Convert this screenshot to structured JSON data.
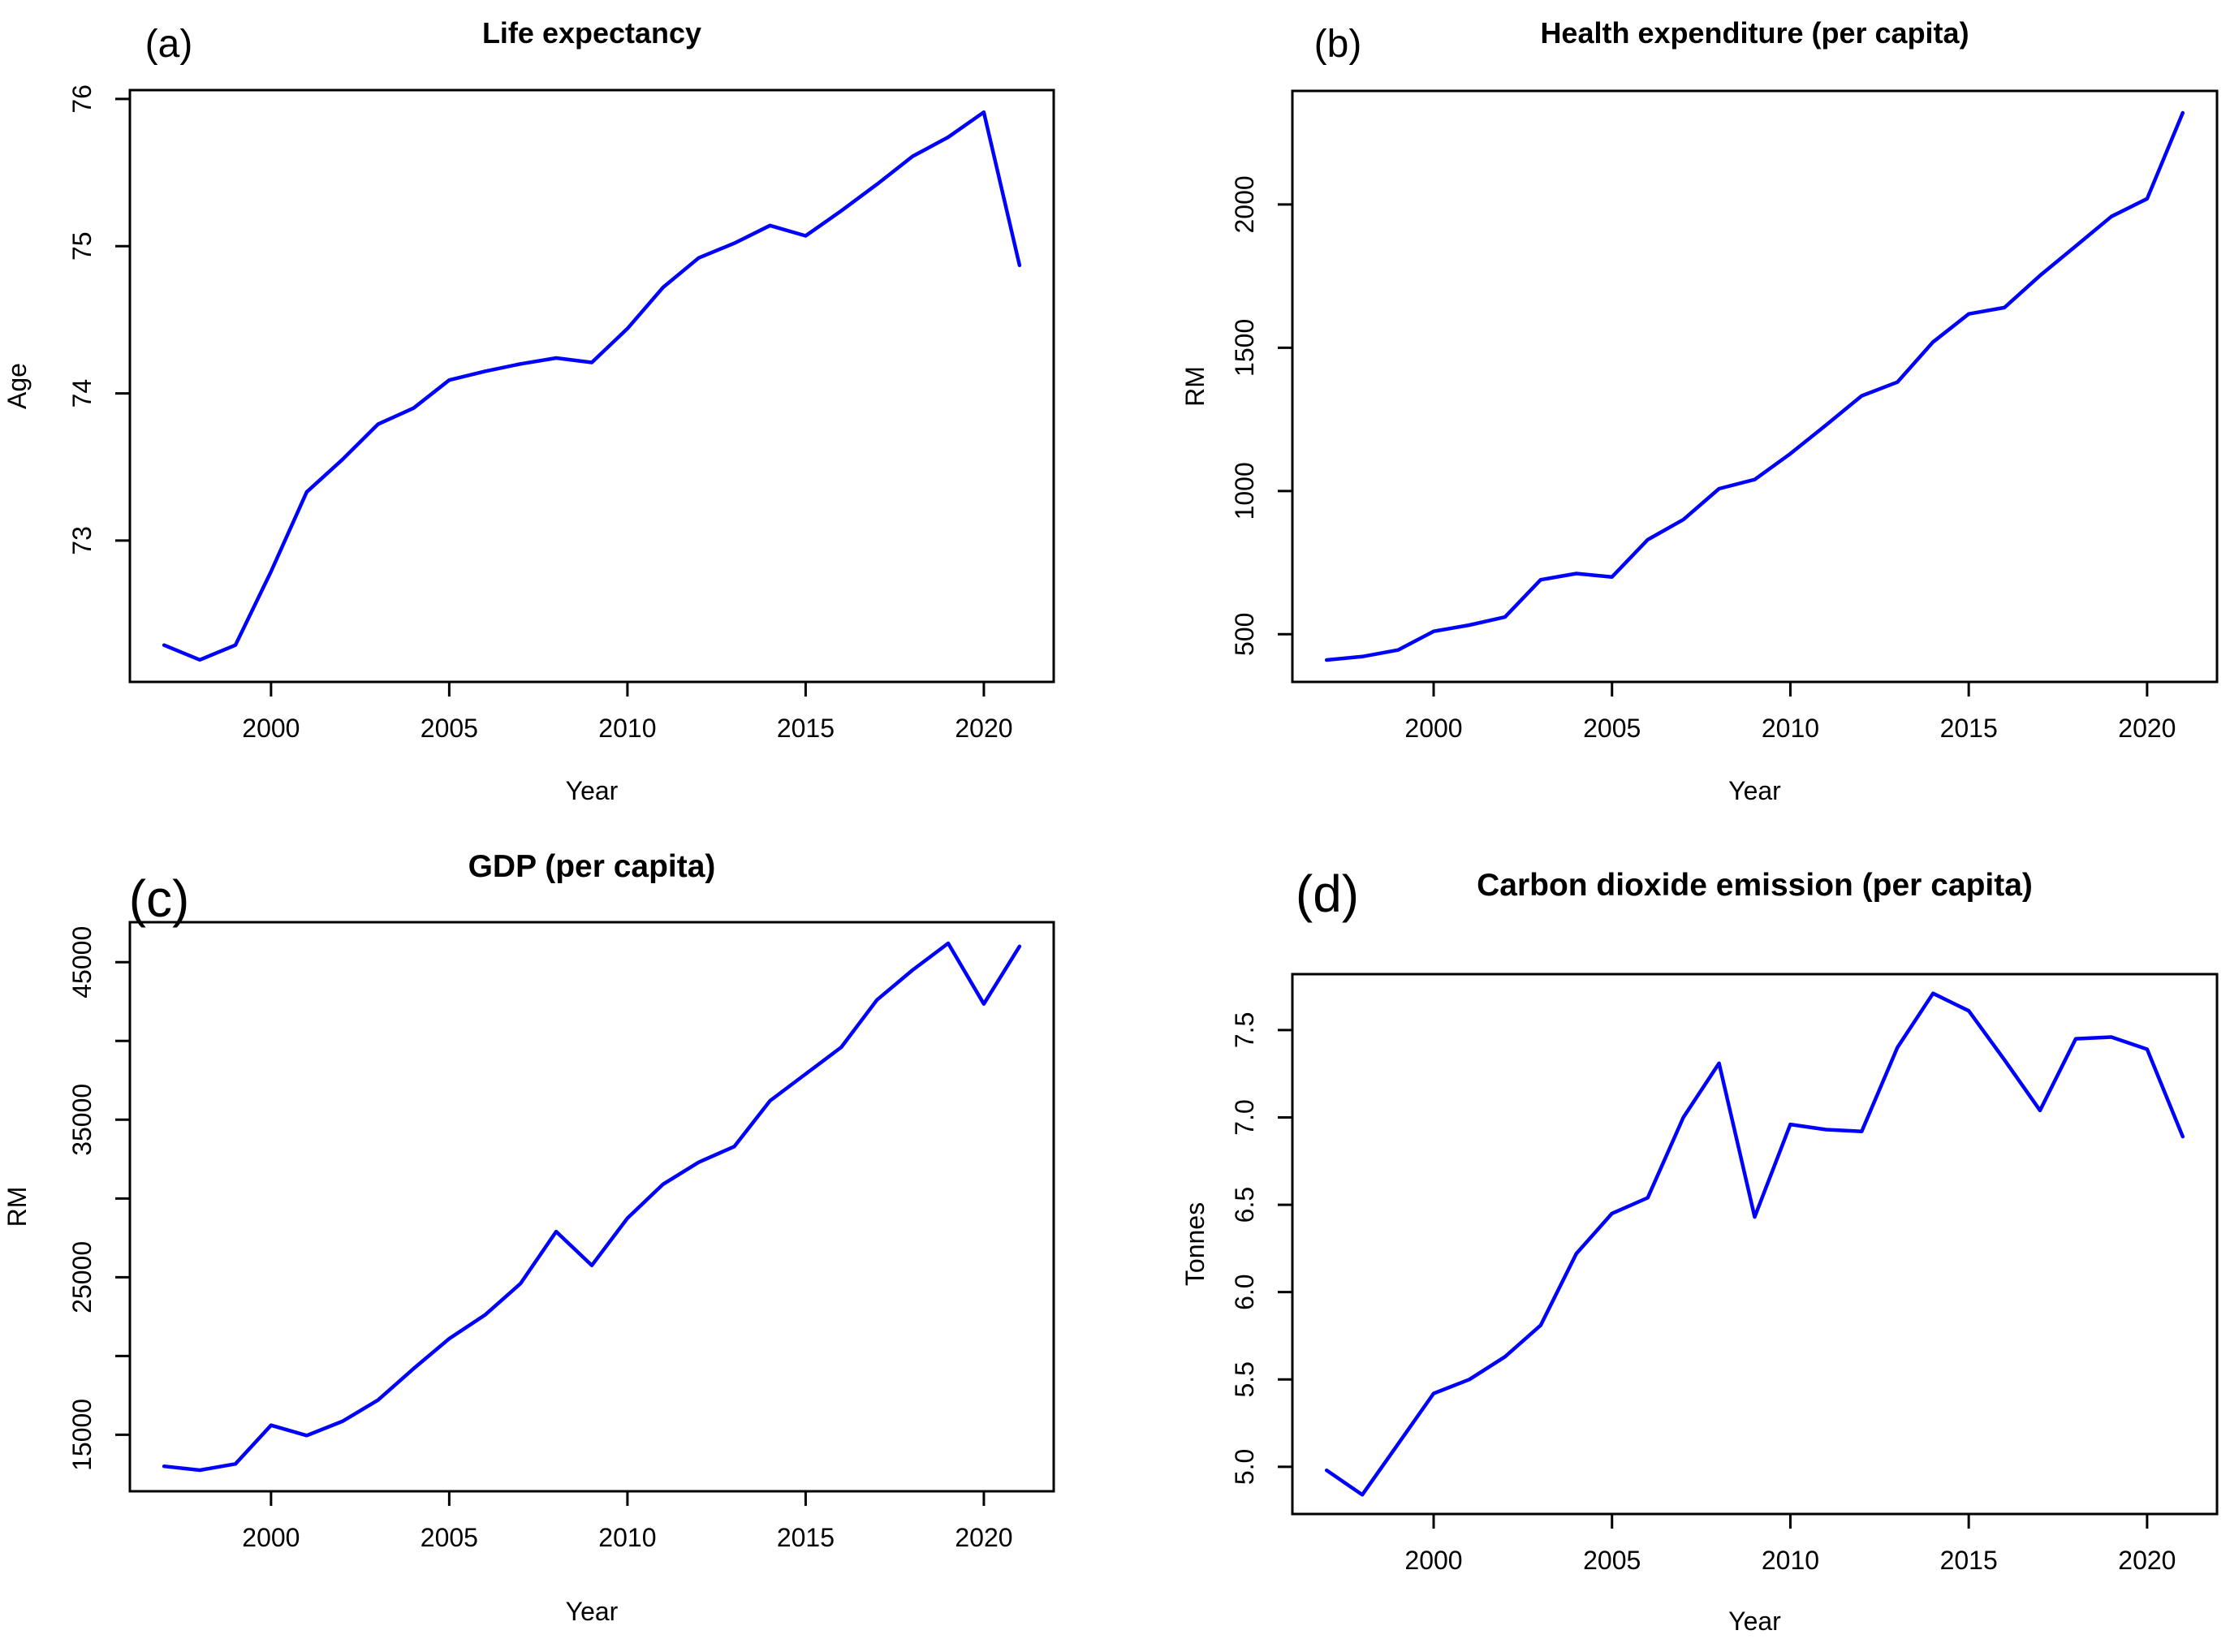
{
  "figure": {
    "background": "#ffffff",
    "axis_color": "#000000",
    "line_color": "#0000ff",
    "years": [
      1997,
      1998,
      1999,
      2000,
      2001,
      2002,
      2003,
      2004,
      2005,
      2006,
      2007,
      2008,
      2009,
      2010,
      2011,
      2012,
      2013,
      2014,
      2015,
      2016,
      2017,
      2018,
      2019,
      2020,
      2021
    ]
  },
  "chart_data": [
    {
      "type": "line",
      "panel_label": "(a)",
      "title": "Life expectancy",
      "xlabel": "Year",
      "ylabel": "Age",
      "legend": null,
      "grid": false,
      "line_color": "#0000ff",
      "xlim": [
        1996.04,
        2021.96
      ],
      "ylim": [
        72.04,
        76.06
      ],
      "xticks": [
        {
          "v": 2000,
          "label": "2000"
        },
        {
          "v": 2005,
          "label": "2005"
        },
        {
          "v": 2010,
          "label": "2010"
        },
        {
          "v": 2015,
          "label": "2015"
        },
        {
          "v": 2020,
          "label": "2020"
        }
      ],
      "yticks": [
        {
          "v": 73,
          "label": "73"
        },
        {
          "v": 74,
          "label": "74"
        },
        {
          "v": 75,
          "label": "75"
        },
        {
          "v": 76,
          "label": "76"
        }
      ],
      "x": [
        1997,
        1998,
        1999,
        2000,
        2001,
        2002,
        2003,
        2004,
        2005,
        2006,
        2007,
        2008,
        2009,
        2010,
        2011,
        2012,
        2013,
        2014,
        2015,
        2016,
        2017,
        2018,
        2019,
        2020,
        2021
      ],
      "values": [
        72.29,
        72.19,
        72.29,
        72.79,
        73.33,
        73.55,
        73.79,
        73.9,
        74.09,
        74.15,
        74.2,
        74.24,
        74.21,
        74.44,
        74.72,
        74.92,
        75.02,
        75.14,
        75.07,
        75.24,
        75.42,
        75.61,
        75.74,
        75.91,
        74.87
      ]
    },
    {
      "type": "line",
      "panel_label": "(b)",
      "title": "Health expenditure (per capita)",
      "xlabel": "Year",
      "ylabel": "RM",
      "legend": null,
      "grid": false,
      "line_color": "#0000ff",
      "xlim": [
        1996.04,
        2021.96
      ],
      "ylim": [
        333.6,
        2396.4
      ],
      "xticks": [
        {
          "v": 2000,
          "label": "2000"
        },
        {
          "v": 2005,
          "label": "2005"
        },
        {
          "v": 2010,
          "label": "2010"
        },
        {
          "v": 2015,
          "label": "2015"
        },
        {
          "v": 2020,
          "label": "2020"
        }
      ],
      "yticks": [
        {
          "v": 500,
          "label": "500"
        },
        {
          "v": 1000,
          "label": "1000"
        },
        {
          "v": 1500,
          "label": "1500"
        },
        {
          "v": 2000,
          "label": "2000"
        }
      ],
      "x": [
        1997,
        1998,
        1999,
        2000,
        2001,
        2002,
        2003,
        2004,
        2005,
        2006,
        2007,
        2008,
        2009,
        2010,
        2011,
        2012,
        2013,
        2014,
        2015,
        2016,
        2017,
        2018,
        2019,
        2020,
        2021
      ],
      "values": [
        410,
        422,
        445,
        510,
        532,
        560,
        690,
        712,
        700,
        830,
        900,
        1008,
        1040,
        1130,
        1230,
        1332,
        1380,
        1520,
        1618,
        1640,
        1752,
        1855,
        1958,
        2020,
        2320
      ]
    },
    {
      "type": "line",
      "panel_label": "(c)",
      "title": "GDP (per capita)",
      "xlabel": "Year",
      "ylabel": "RM",
      "legend": null,
      "grid": false,
      "line_color": "#0000ff",
      "xlim": [
        1996.04,
        2021.96
      ],
      "ylim": [
        11412,
        47538
      ],
      "xticks": [
        {
          "v": 2000,
          "label": "2000"
        },
        {
          "v": 2005,
          "label": "2005"
        },
        {
          "v": 2010,
          "label": "2010"
        },
        {
          "v": 2015,
          "label": "2015"
        },
        {
          "v": 2020,
          "label": "2020"
        }
      ],
      "yticks": [
        {
          "v": 15000,
          "label": "15000"
        },
        {
          "v": 20000,
          "label": ""
        },
        {
          "v": 25000,
          "label": "25000"
        },
        {
          "v": 30000,
          "label": ""
        },
        {
          "v": 35000,
          "label": "35000"
        },
        {
          "v": 40000,
          "label": ""
        },
        {
          "v": 45000,
          "label": "45000"
        }
      ],
      "x": [
        1997,
        1998,
        1999,
        2000,
        2001,
        2002,
        2003,
        2004,
        2005,
        2006,
        2007,
        2008,
        2009,
        2010,
        2011,
        2012,
        2013,
        2014,
        2015,
        2016,
        2017,
        2018,
        2019,
        2020,
        2021
      ],
      "values": [
        13000,
        12750,
        13150,
        15600,
        14950,
        15850,
        17200,
        19200,
        21100,
        22600,
        24600,
        27900,
        25750,
        28750,
        30900,
        32300,
        33300,
        36200,
        37900,
        39600,
        42600,
        44500,
        46200,
        42350,
        46000
      ]
    },
    {
      "type": "line",
      "panel_label": "(d)",
      "title": "Carbon dioxide emission (per capita)",
      "xlabel": "Year",
      "ylabel": "Tonnes",
      "legend": null,
      "grid": false,
      "line_color": "#0000ff",
      "xlim": [
        1996.04,
        2021.96
      ],
      "ylim": [
        4.73,
        7.82
      ],
      "xticks": [
        {
          "v": 2000,
          "label": "2000"
        },
        {
          "v": 2005,
          "label": "2005"
        },
        {
          "v": 2010,
          "label": "2010"
        },
        {
          "v": 2015,
          "label": "2015"
        },
        {
          "v": 2020,
          "label": "2020"
        }
      ],
      "yticks": [
        {
          "v": 5.0,
          "label": "5.0"
        },
        {
          "v": 5.5,
          "label": "5.5"
        },
        {
          "v": 6.0,
          "label": "6.0"
        },
        {
          "v": 6.5,
          "label": "6.5"
        },
        {
          "v": 7.0,
          "label": "7.0"
        },
        {
          "v": 7.5,
          "label": "7.5"
        }
      ],
      "x": [
        1997,
        1998,
        1999,
        2000,
        2001,
        2002,
        2003,
        2004,
        2005,
        2006,
        2007,
        2008,
        2009,
        2010,
        2011,
        2012,
        2013,
        2014,
        2015,
        2016,
        2017,
        2018,
        2019,
        2020,
        2021
      ],
      "values": [
        4.98,
        4.84,
        5.13,
        5.42,
        5.5,
        5.63,
        5.81,
        6.22,
        6.45,
        6.54,
        7.0,
        7.31,
        6.43,
        6.96,
        6.93,
        6.92,
        7.4,
        7.71,
        7.61,
        7.33,
        7.04,
        7.45,
        7.46,
        7.39,
        6.89
      ]
    }
  ]
}
